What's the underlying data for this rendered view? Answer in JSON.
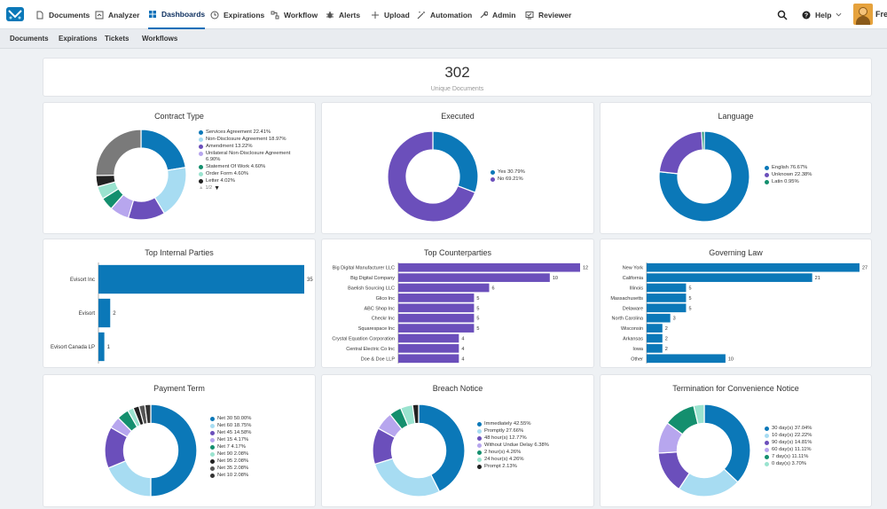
{
  "nav": {
    "items": [
      {
        "label": "Documents",
        "icon": "document-icon"
      },
      {
        "label": "Analyzer",
        "icon": "analyzer-icon"
      },
      {
        "label": "Dashboards",
        "icon": "dashboard-icon"
      },
      {
        "label": "Expirations",
        "icon": "clock-icon"
      },
      {
        "label": "Workflow",
        "icon": "workflow-icon"
      },
      {
        "label": "Alerts",
        "icon": "bug-icon"
      },
      {
        "label": "Upload",
        "icon": "plus-icon"
      },
      {
        "label": "Automation",
        "icon": "wand-icon"
      },
      {
        "label": "Admin",
        "icon": "wrench-icon"
      },
      {
        "label": "Reviewer",
        "icon": "reviewer-icon"
      }
    ],
    "help_label": "Help",
    "user_name": "Fred"
  },
  "subnav": [
    "Documents",
    "Expirations",
    "Tickets",
    "Workflows"
  ],
  "kpi": {
    "value": "302",
    "label": "Unique Documents"
  },
  "charts": {
    "contract_type": {
      "title": "Contract Type",
      "pager": "1/2"
    },
    "executed": {
      "title": "Executed"
    },
    "language": {
      "title": "Language"
    },
    "top_internal": {
      "title": "Top Internal Parties"
    },
    "top_counterparties": {
      "title": "Top Counterparties"
    },
    "governing_law": {
      "title": "Governing Law"
    },
    "payment_term": {
      "title": "Payment Term"
    },
    "breach_notice": {
      "title": "Breach Notice"
    },
    "termination": {
      "title": "Termination for Convenience Notice"
    }
  },
  "chart_data": [
    {
      "id": "contract_type",
      "type": "pie",
      "title": "Contract Type",
      "slices": [
        {
          "label": "Services Agreement 22.41%",
          "value": 22.41,
          "color": "#0b78b8"
        },
        {
          "label": "Non-Disclosure Agreement 18.97%",
          "value": 18.97,
          "color": "#a7dcf2"
        },
        {
          "label": "Amendment 13.22%",
          "value": 13.22,
          "color": "#6b4fbb"
        },
        {
          "label": "Unilateral Non-Disclosure Agreement 6.90%",
          "value": 6.9,
          "color": "#b7a6ee"
        },
        {
          "label": "Statement Of Work 4.60%",
          "value": 4.6,
          "color": "#148f6e"
        },
        {
          "label": "Order Form 4.60%",
          "value": 4.6,
          "color": "#9ae3cf"
        },
        {
          "label": "Letter 4.02%",
          "value": 4.02,
          "color": "#222222"
        }
      ],
      "hidden_remainder": {
        "value": 25.28,
        "color": "#7a7a7a"
      }
    },
    {
      "id": "executed",
      "type": "pie",
      "title": "Executed",
      "slices": [
        {
          "label": "Yes 30.79%",
          "value": 30.79,
          "color": "#0b78b8"
        },
        {
          "label": "No 69.21%",
          "value": 69.21,
          "color": "#6b4fbb"
        }
      ]
    },
    {
      "id": "language",
      "type": "pie",
      "title": "Language",
      "slices": [
        {
          "label": "English 76.67%",
          "value": 76.67,
          "color": "#0b78b8"
        },
        {
          "label": "Unknown 22.38%",
          "value": 22.38,
          "color": "#6b4fbb"
        },
        {
          "label": "Latin 0.95%",
          "value": 0.95,
          "color": "#148f6e"
        }
      ]
    },
    {
      "id": "top_internal",
      "type": "bar",
      "title": "Top Internal Parties",
      "orientation": "horizontal",
      "color": "#0b78b8",
      "categories": [
        "Evisort Inc",
        "Evisort",
        "Evisort Canada LP"
      ],
      "values": [
        35,
        2,
        1
      ],
      "xmax": 35
    },
    {
      "id": "top_counterparties",
      "type": "bar",
      "title": "Top Counterparties",
      "orientation": "horizontal",
      "color": "#6b4fbb",
      "categories": [
        "Big Digital Manufacturer LLC",
        "Big Digital Company",
        "Baelish Sourcing LLC",
        "Glico Inc",
        "ABC Shop Inc",
        "Checkr Inc",
        "Squarespace Inc",
        "Crystal Equation Corporation",
        "Central Electric Co Inc",
        "Doe & Doe LLP"
      ],
      "values": [
        12,
        10,
        6,
        5,
        5,
        5,
        5,
        4,
        4,
        4
      ],
      "xmax": 12
    },
    {
      "id": "governing_law",
      "type": "bar",
      "title": "Governing Law",
      "orientation": "horizontal",
      "color": "#0b78b8",
      "categories": [
        "New York",
        "California",
        "Illinois",
        "Massachusetts",
        "Delaware",
        "North Carolina",
        "Wisconsin",
        "Arkansas",
        "Iowa",
        "Other"
      ],
      "values": [
        27,
        21,
        5,
        5,
        5,
        3,
        2,
        2,
        2,
        10
      ],
      "xmax": 27
    },
    {
      "id": "payment_term",
      "type": "pie",
      "title": "Payment Term",
      "slices": [
        {
          "label": "Net 30 50.00%",
          "value": 50.0,
          "color": "#0b78b8"
        },
        {
          "label": "Net 60 18.75%",
          "value": 18.75,
          "color": "#a7dcf2"
        },
        {
          "label": "Net 45 14.58%",
          "value": 14.58,
          "color": "#6b4fbb"
        },
        {
          "label": "Net 15 4.17%",
          "value": 4.17,
          "color": "#b7a6ee"
        },
        {
          "label": "Net 7 4.17%",
          "value": 4.17,
          "color": "#148f6e"
        },
        {
          "label": "Net 90 2.08%",
          "value": 2.08,
          "color": "#9ae3cf"
        },
        {
          "label": "Net 95 2.08%",
          "value": 2.08,
          "color": "#222222"
        },
        {
          "label": "Net 35 2.08%",
          "value": 2.08,
          "color": "#555555"
        },
        {
          "label": "Net 10 2.08%",
          "value": 2.08,
          "color": "#333333"
        }
      ]
    },
    {
      "id": "breach_notice",
      "type": "pie",
      "title": "Breach Notice",
      "slices": [
        {
          "label": "Immediately 42.55%",
          "value": 42.55,
          "color": "#0b78b8"
        },
        {
          "label": "Promptly 27.66%",
          "value": 27.66,
          "color": "#a7dcf2"
        },
        {
          "label": "48 hour(s) 12.77%",
          "value": 12.77,
          "color": "#6b4fbb"
        },
        {
          "label": "Without Undue Delay 6.38%",
          "value": 6.38,
          "color": "#b7a6ee"
        },
        {
          "label": "2 hour(s) 4.26%",
          "value": 4.26,
          "color": "#148f6e"
        },
        {
          "label": "24 hour(s) 4.26%",
          "value": 4.26,
          "color": "#9ae3cf"
        },
        {
          "label": "Prompt 2.13%",
          "value": 2.13,
          "color": "#222222"
        }
      ]
    },
    {
      "id": "termination",
      "type": "pie",
      "title": "Termination for Convenience Notice",
      "slices": [
        {
          "label": "30 day(s) 37.04%",
          "value": 37.04,
          "color": "#0b78b8"
        },
        {
          "label": "10 day(s) 22.22%",
          "value": 22.22,
          "color": "#a7dcf2"
        },
        {
          "label": "90 day(s) 14.81%",
          "value": 14.81,
          "color": "#6b4fbb"
        },
        {
          "label": "60 day(s) 11.11%",
          "value": 11.11,
          "color": "#b7a6ee"
        },
        {
          "label": "7 day(s) 11.11%",
          "value": 11.11,
          "color": "#148f6e"
        },
        {
          "label": "0 day(s) 3.70%",
          "value": 3.7,
          "color": "#9ae3cf"
        }
      ]
    }
  ]
}
